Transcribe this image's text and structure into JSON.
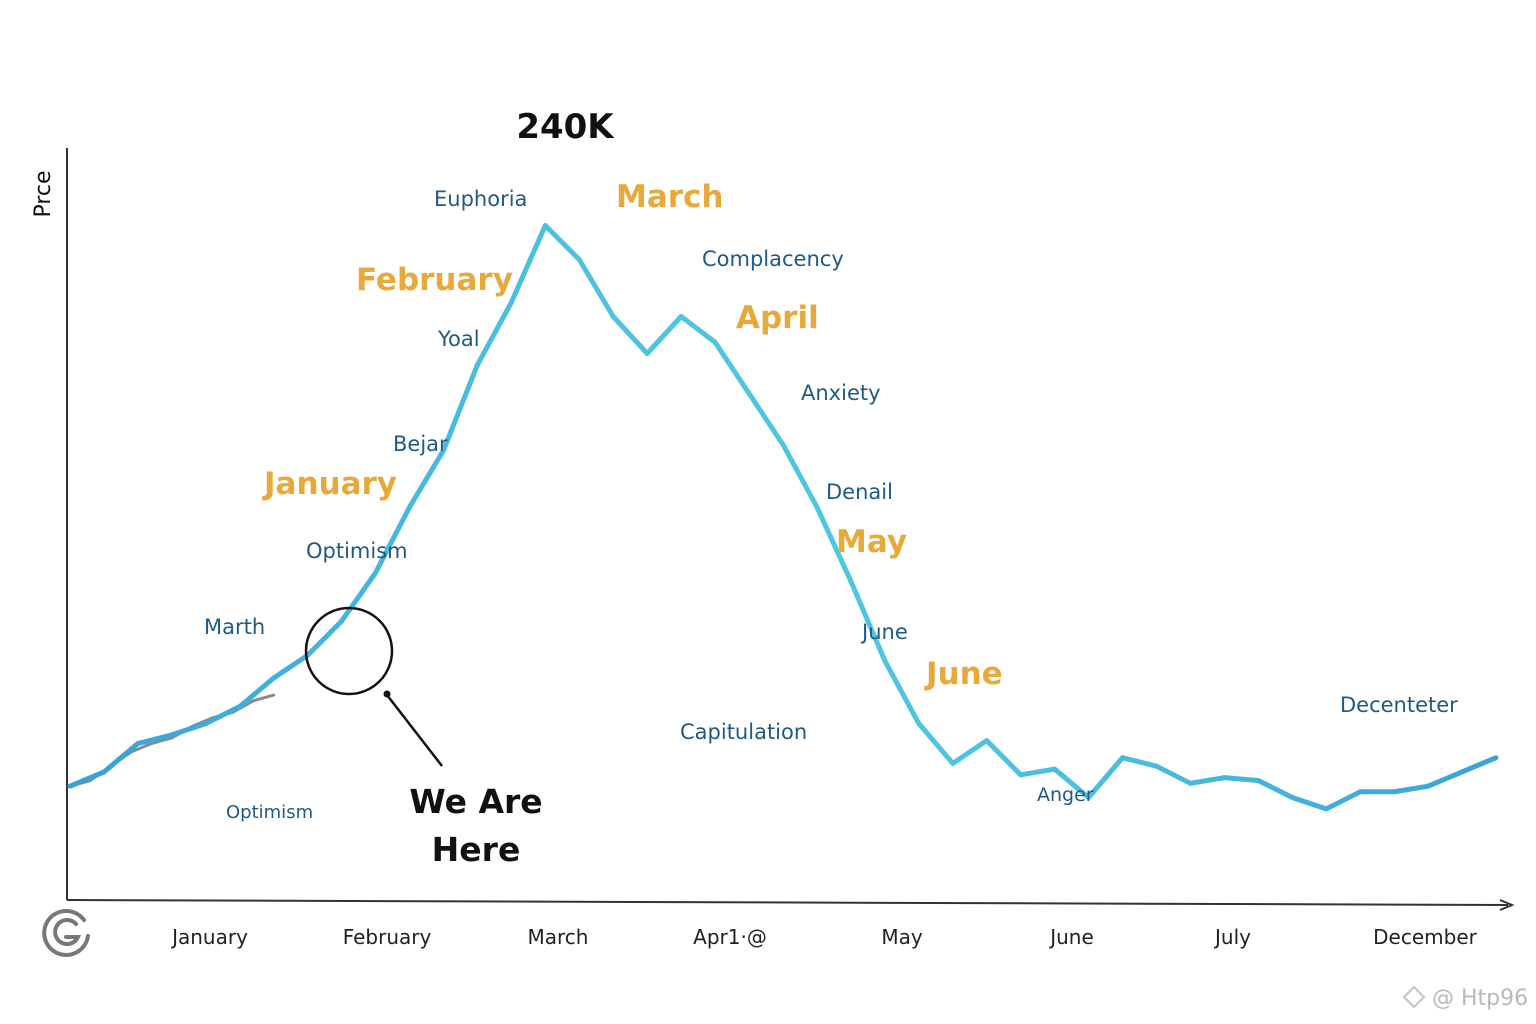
{
  "chart_data": {
    "type": "line",
    "ylabel": "Prce",
    "xlabel": "",
    "x_tick_labels": [
      "January",
      "February",
      "March",
      "Apr1·@",
      "May",
      "June",
      "July",
      "December"
    ],
    "peak_label": "240K",
    "callout": {
      "line1": "We Are",
      "line2": "Here"
    },
    "month_labels": [
      "March",
      "February",
      "April",
      "January",
      "May",
      "June"
    ],
    "phase_labels": [
      "Euphoria",
      "Complacency",
      "Yoal",
      "Anxiety",
      "Bejar",
      "Denail",
      "Optimism",
      "Marth",
      "June",
      "Capitulation",
      "Anger",
      "Optimism",
      "Decenteter"
    ],
    "series": [
      {
        "points": [
          [
            0.0,
            40
          ],
          [
            0.25,
            45
          ],
          [
            0.5,
            55
          ],
          [
            0.75,
            58
          ],
          [
            1.0,
            62
          ],
          [
            1.25,
            68
          ],
          [
            1.5,
            78
          ],
          [
            1.75,
            86
          ],
          [
            2.0,
            98
          ],
          [
            2.25,
            115
          ],
          [
            2.5,
            138
          ],
          [
            2.75,
            158
          ],
          [
            3.0,
            188
          ],
          [
            3.25,
            210
          ],
          [
            3.5,
            237
          ],
          [
            3.75,
            225
          ],
          [
            4.0,
            205
          ],
          [
            4.25,
            192
          ],
          [
            4.5,
            205
          ],
          [
            4.75,
            196
          ],
          [
            5.0,
            178
          ],
          [
            5.25,
            160
          ],
          [
            5.5,
            138
          ],
          [
            5.75,
            112
          ],
          [
            6.0,
            84
          ],
          [
            6.25,
            62
          ],
          [
            6.5,
            48
          ],
          [
            6.75,
            56
          ],
          [
            7.0,
            44
          ],
          [
            7.25,
            46
          ],
          [
            7.5,
            36
          ],
          [
            7.75,
            50
          ],
          [
            8.0,
            47
          ],
          [
            8.25,
            41
          ],
          [
            8.5,
            43
          ],
          [
            8.75,
            42
          ],
          [
            9.0,
            36
          ],
          [
            9.25,
            32
          ],
          [
            9.5,
            38
          ],
          [
            9.75,
            38
          ],
          [
            10.0,
            40
          ],
          [
            10.25,
            45
          ],
          [
            10.5,
            50
          ]
        ]
      }
    ],
    "overlay_series": {
      "points": [
        [
          0.0,
          40
        ],
        [
          0.15,
          42
        ],
        [
          0.3,
          47
        ],
        [
          0.45,
          52
        ],
        [
          0.6,
          55
        ],
        [
          0.75,
          57
        ],
        [
          0.9,
          61
        ],
        [
          1.05,
          64
        ],
        [
          1.2,
          66
        ],
        [
          1.35,
          70
        ],
        [
          1.5,
          72
        ]
      ]
    },
    "xlim": [
      0,
      10.5
    ],
    "ylim": [
      0,
      260
    ],
    "colors": {
      "line_start": "#3aa0d8",
      "line_end": "#4fc6e0",
      "overlay": "#8a8a8a",
      "month": "#e8a93b",
      "phase": "#1f5a86",
      "axis": "#333333"
    },
    "grid": false,
    "legend": "none"
  },
  "watermark": "@ Htp96"
}
